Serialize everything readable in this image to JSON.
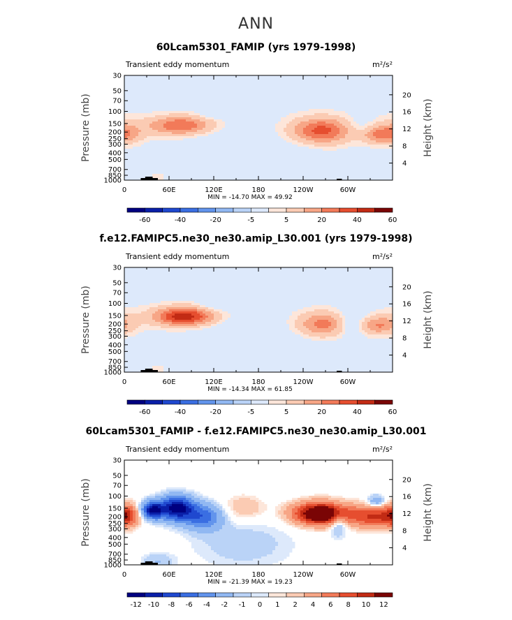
{
  "figure_title": "ANN",
  "colors": {
    "sequential_scale": [
      "#000080",
      "#0a1fa8",
      "#1f48cf",
      "#3a6ee2",
      "#6294ec",
      "#91b8f2",
      "#bad3f7",
      "#dde9fb",
      "#fde6da",
      "#fbcbb3",
      "#f7a686",
      "#f27a59",
      "#e64e2f",
      "#c22b14",
      "#7a0505"
    ],
    "diff_scale": [
      "#000080",
      "#0a1fa8",
      "#1f48cf",
      "#3a6ee2",
      "#6294ec",
      "#91b8f2",
      "#bad3f7",
      "#dde9fb",
      "#fde6da",
      "#fbcbb3",
      "#f7a686",
      "#f27a59",
      "#e64e2f",
      "#c22b14",
      "#7a0505"
    ],
    "background_positive": "#fde6da",
    "background_neutral": "#ffffff"
  },
  "chart_data": [
    {
      "type": "contour",
      "title": "60Lcam5301_FAMIP (yrs 1979-1998)",
      "left_label": "Transient eddy momentum",
      "unit_label": "m²/s²",
      "ylabel": "Pressure (mb)",
      "y2label": "Height (km)",
      "x_ticks": [
        "0",
        "60E",
        "120E",
        "180",
        "120W",
        "60W"
      ],
      "x_tick_lons": [
        0,
        60,
        120,
        180,
        240,
        300
      ],
      "xlim": [
        0,
        360
      ],
      "p_ticks": [
        "30",
        "50",
        "70",
        "100",
        "150",
        "200",
        "250",
        "300",
        "400",
        "500",
        "700",
        "850",
        "1000"
      ],
      "p_values": [
        30,
        50,
        70,
        100,
        150,
        200,
        250,
        300,
        400,
        500,
        700,
        850,
        1000
      ],
      "h_ticks": [
        "4",
        "8",
        "12",
        "16",
        "20"
      ],
      "h_values": [
        4,
        8,
        12,
        16,
        20
      ],
      "stats_text": "MIN = -14.70   MAX = 49.92",
      "colorbar_labels": [
        "-60",
        "-40",
        "-20",
        "-5",
        "5",
        "20",
        "40",
        "60"
      ],
      "features": [
        {
          "lon": 0,
          "p": 180,
          "amp": 12,
          "wl": 18,
          "wp": 0.28
        },
        {
          "lon": 75,
          "p": 160,
          "amp": 38,
          "wl": 30,
          "wp": 0.22
        },
        {
          "lon": 125,
          "p": 105,
          "amp": -8,
          "wl": 18,
          "wp": 0.14
        },
        {
          "lon": 140,
          "p": 260,
          "amp": -5,
          "wl": 40,
          "wp": 0.4
        },
        {
          "lon": 265,
          "p": 190,
          "amp": 42,
          "wl": 28,
          "wp": 0.3
        },
        {
          "lon": 315,
          "p": 190,
          "amp": -10,
          "wl": 14,
          "wp": 0.28
        },
        {
          "lon": 345,
          "p": 220,
          "amp": 30,
          "wl": 22,
          "wp": 0.2
        },
        {
          "lon": 230,
          "p": 600,
          "amp": -6,
          "wl": 30,
          "wp": 0.5
        },
        {
          "lon": 45,
          "p": 930,
          "amp": 8,
          "wl": 6,
          "wp": 0.1
        },
        {
          "lon": 150,
          "p": 700,
          "amp": -4,
          "wl": 40,
          "wp": 0.5
        }
      ]
    },
    {
      "type": "contour",
      "title": "f.e12.FAMIPC5.ne30_ne30.amip_L30.001 (yrs 1979-1998)",
      "left_label": "Transient eddy momentum",
      "unit_label": "m²/s²",
      "ylabel": "Pressure (mb)",
      "y2label": "Height (km)",
      "x_ticks": [
        "0",
        "60E",
        "120E",
        "180",
        "120W",
        "60W"
      ],
      "x_tick_lons": [
        0,
        60,
        120,
        180,
        240,
        300
      ],
      "xlim": [
        0,
        360
      ],
      "p_ticks": [
        "30",
        "50",
        "70",
        "100",
        "150",
        "200",
        "250",
        "300",
        "400",
        "500",
        "700",
        "850",
        "1000"
      ],
      "p_values": [
        30,
        50,
        70,
        100,
        150,
        200,
        250,
        300,
        400,
        500,
        700,
        850,
        1000
      ],
      "h_ticks": [
        "4",
        "8",
        "12",
        "16",
        "20"
      ],
      "h_values": [
        4,
        8,
        12,
        16,
        20
      ],
      "stats_text": "MIN = -14.34   MAX = 61.85",
      "colorbar_labels": [
        "-60",
        "-40",
        "-20",
        "-5",
        "5",
        "20",
        "40",
        "60"
      ],
      "features": [
        {
          "lon": 0,
          "p": 180,
          "amp": 8,
          "wl": 18,
          "wp": 0.28
        },
        {
          "lon": 80,
          "p": 155,
          "amp": 55,
          "wl": 28,
          "wp": 0.22
        },
        {
          "lon": 125,
          "p": 105,
          "amp": -9,
          "wl": 18,
          "wp": 0.14
        },
        {
          "lon": 140,
          "p": 260,
          "amp": -5,
          "wl": 40,
          "wp": 0.4
        },
        {
          "lon": 265,
          "p": 200,
          "amp": 32,
          "wl": 22,
          "wp": 0.28
        },
        {
          "lon": 305,
          "p": 190,
          "amp": -12,
          "wl": 12,
          "wp": 0.3
        },
        {
          "lon": 340,
          "p": 210,
          "amp": 25,
          "wl": 18,
          "wp": 0.2
        },
        {
          "lon": 225,
          "p": 600,
          "amp": -6,
          "wl": 30,
          "wp": 0.5
        },
        {
          "lon": 45,
          "p": 930,
          "amp": 8,
          "wl": 6,
          "wp": 0.1
        },
        {
          "lon": 150,
          "p": 700,
          "amp": -4,
          "wl": 40,
          "wp": 0.5
        }
      ]
    },
    {
      "type": "contour",
      "title": "60Lcam5301_FAMIP - f.e12.FAMIPC5.ne30_ne30.amip_L30.001",
      "left_label": "Transient eddy momentum",
      "unit_label": "m²/s²",
      "ylabel": "Pressure (mb)",
      "y2label": "Height (km)",
      "x_ticks": [
        "0",
        "60E",
        "120E",
        "180",
        "120W",
        "60W"
      ],
      "x_tick_lons": [
        0,
        60,
        120,
        180,
        240,
        300
      ],
      "xlim": [
        0,
        360
      ],
      "p_ticks": [
        "30",
        "50",
        "70",
        "100",
        "150",
        "200",
        "250",
        "300",
        "400",
        "500",
        "700",
        "850",
        "1000"
      ],
      "p_values": [
        30,
        50,
        70,
        100,
        150,
        200,
        250,
        300,
        400,
        500,
        700,
        850,
        1000
      ],
      "h_ticks": [
        "4",
        "8",
        "12",
        "16",
        "20"
      ],
      "h_values": [
        4,
        8,
        12,
        16,
        20
      ],
      "stats_text": "MIN = -21.39   MAX = 19.23",
      "colorbar_labels": [
        "-12",
        "-10",
        "-8",
        "-6",
        "-4",
        "-2",
        "-1",
        "0",
        "1",
        "2",
        "4",
        "6",
        "8",
        "10",
        "12"
      ],
      "features": [
        {
          "lon": 3,
          "p": 190,
          "amp": 7,
          "wl": 10,
          "wp": 0.25
        },
        {
          "lon": 38,
          "p": 160,
          "amp": -12,
          "wl": 10,
          "wp": 0.2
        },
        {
          "lon": 70,
          "p": 150,
          "amp": -13,
          "wl": 16,
          "wp": 0.28
        },
        {
          "lon": 105,
          "p": 200,
          "amp": -7,
          "wl": 18,
          "wp": 0.3
        },
        {
          "lon": 160,
          "p": 150,
          "amp": 2,
          "wl": 20,
          "wp": 0.3
        },
        {
          "lon": 265,
          "p": 180,
          "amp": 16,
          "wl": 25,
          "wp": 0.25
        },
        {
          "lon": 287,
          "p": 230,
          "amp": -5,
          "wl": 8,
          "wp": 0.3
        },
        {
          "lon": 335,
          "p": 200,
          "amp": 8,
          "wl": 22,
          "wp": 0.25
        },
        {
          "lon": 338,
          "p": 120,
          "amp": -4,
          "wl": 8,
          "wp": 0.15
        },
        {
          "lon": 160,
          "p": 500,
          "amp": -1.5,
          "wl": 50,
          "wp": 0.6
        },
        {
          "lon": 45,
          "p": 900,
          "amp": -2,
          "wl": 15,
          "wp": 0.2
        }
      ]
    }
  ]
}
